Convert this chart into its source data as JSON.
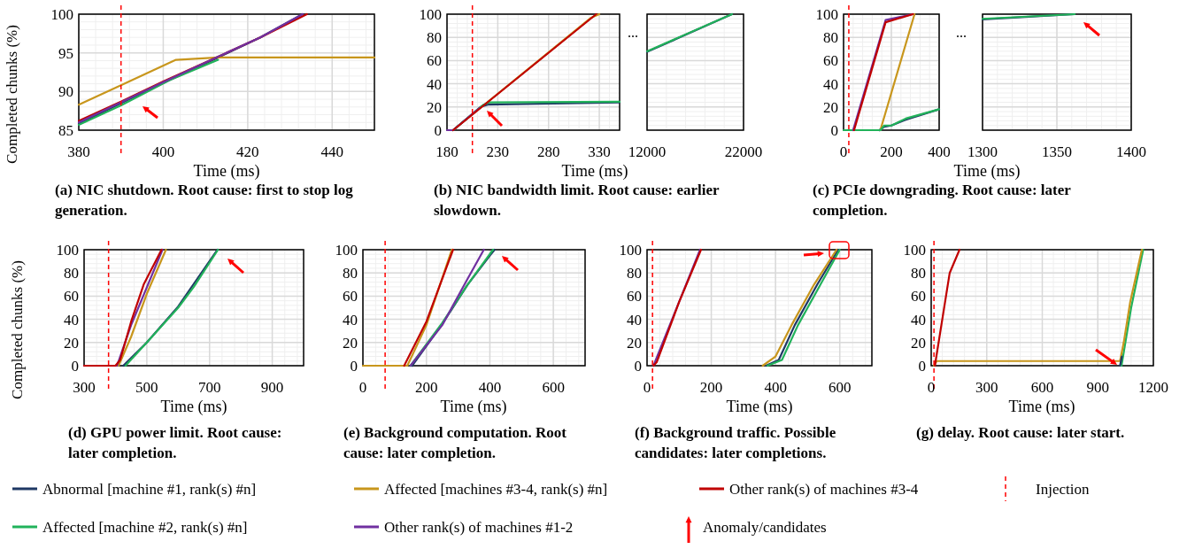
{
  "chart_data": [
    {
      "type": "line",
      "title": "(a) NIC shutdown. Root cause: first to stop log generation.",
      "xlabel": "Time (ms)",
      "ylabel": "Completed chunks (%)",
      "xlim": [
        380,
        450
      ],
      "xticks": [
        380,
        400,
        420,
        440
      ],
      "ylim": [
        85,
        100
      ],
      "yticks": [
        85,
        90,
        95,
        100
      ],
      "grid": true,
      "legend": "bottom",
      "annotations": [
        "Anomaly/candidates"
      ],
      "ref_lines": [
        {
          "axis": "x",
          "value": 390,
          "label": "Injection",
          "color": "#ff0000",
          "line_style": "dashed"
        }
      ],
      "series": [
        {
          "name": "Abnormal [machine #1, rank(s)  #n]",
          "color": "#1f3864",
          "x": [
            380,
            390,
            400,
            413,
            423,
            433
          ],
          "values": [
            85.8,
            88.5,
            91.1,
            94.4,
            97,
            100
          ]
        },
        {
          "name": "Affected [machines #3-4, rank(s)  #n]",
          "color": "#c8961c",
          "x": [
            380,
            390,
            403,
            413,
            450
          ],
          "values": [
            88.3,
            90.8,
            94.1,
            94.4,
            94.4
          ]
        },
        {
          "name": "Other rank(s) of machines #3-4",
          "color": "#c00000",
          "x": [
            380,
            390,
            400,
            413,
            423,
            434
          ],
          "values": [
            86.2,
            88.7,
            91.3,
            94.5,
            97,
            100
          ]
        },
        {
          "name": "Affected [machine #2, rank(s)  #n]",
          "color": "#21b25a",
          "x": [
            380,
            390,
            402,
            413
          ],
          "values": [
            85.7,
            88.2,
            91.6,
            94.1
          ]
        },
        {
          "name": "Other rank(s) of machines #1-2",
          "color": "#7030a0",
          "x": [
            380,
            390,
            400,
            413,
            423,
            433
          ],
          "values": [
            86,
            88.6,
            91.2,
            94.5,
            97,
            100
          ]
        }
      ]
    },
    {
      "type": "line",
      "title": "(b) NIC bandwidth limit. Root cause: earlier slowdown.",
      "xlabel": "Time (ms)",
      "xlim": [
        180,
        350
      ],
      "xticks": [
        180,
        230,
        280,
        330
      ],
      "ylim": [
        0,
        100
      ],
      "yticks": [
        0,
        20,
        40,
        60,
        80,
        100
      ],
      "grid": true,
      "ref_lines": [
        {
          "axis": "x",
          "value": 205,
          "color": "#ff0000",
          "line_style": "dashed"
        }
      ],
      "series": [
        {
          "color": "#1f3864",
          "x": [
            186,
            213,
            220,
            350
          ],
          "values": [
            0,
            20,
            22,
            24
          ]
        },
        {
          "color": "#c8961c",
          "x": [
            186,
            322,
            330
          ],
          "values": [
            0,
            97,
            100
          ]
        },
        {
          "color": "#21b25a",
          "x": [
            186,
            216,
            222,
            350
          ],
          "values": [
            0,
            22,
            24,
            24.5
          ]
        },
        {
          "color": "#7030a0",
          "x": [
            180,
            186,
            212
          ],
          "values": [
            0,
            0,
            19
          ]
        },
        {
          "color": "#c00000",
          "x": [
            186,
            327
          ],
          "values": [
            0,
            100
          ]
        }
      ]
    },
    {
      "type": "line",
      "xlim": [
        12000,
        22000
      ],
      "xticks": [
        12000,
        22000
      ],
      "ylim": [
        0,
        100
      ],
      "yticks": [
        0,
        20,
        40,
        60,
        80,
        100
      ],
      "grid": true,
      "tick_labels": "x",
      "annotations": [
        "..."
      ],
      "series": [
        {
          "color": "#1f3864",
          "x": [
            12000,
            20800
          ],
          "values": [
            67.5,
            100
          ]
        },
        {
          "color": "#21b25a",
          "x": [
            12000,
            20800
          ],
          "values": [
            68,
            100
          ]
        }
      ]
    },
    {
      "type": "line",
      "title": "(c) PCIe downgrading. Root cause: later completion.",
      "xlabel": "Time (ms)",
      "xlim": [
        0,
        400
      ],
      "xticks": [
        0,
        200,
        400
      ],
      "ylim": [
        0,
        100
      ],
      "yticks": [
        0,
        20,
        40,
        60,
        80,
        100
      ],
      "grid": true,
      "ref_lines": [
        {
          "axis": "x",
          "value": 22,
          "color": "#ff0000",
          "line_style": "dashed"
        }
      ],
      "series": [
        {
          "color": "#1f3864",
          "x": [
            150,
            170,
            200,
            260,
            400
          ],
          "values": [
            0,
            3,
            4,
            9,
            18
          ]
        },
        {
          "color": "#c8961c",
          "x": [
            154,
            297
          ],
          "values": [
            0,
            100
          ]
        },
        {
          "color": "#21b25a",
          "x": [
            0,
            155,
            170,
            200,
            260,
            400
          ],
          "values": [
            0,
            0,
            4,
            4,
            10,
            18
          ]
        },
        {
          "color": "#7030a0",
          "x": [
            40,
            176,
            290
          ],
          "values": [
            0,
            95,
            100
          ]
        },
        {
          "color": "#c00000",
          "x": [
            44,
            176,
            290
          ],
          "values": [
            0,
            93,
            100
          ]
        }
      ]
    },
    {
      "type": "line",
      "xlim": [
        1300,
        1400
      ],
      "xticks": [
        1300,
        1350,
        1400
      ],
      "ylim": [
        0,
        100
      ],
      "yticks": [
        0,
        20,
        40,
        60,
        80,
        100
      ],
      "grid": true,
      "tick_labels": "x",
      "annotations": [
        "..."
      ],
      "series": [
        {
          "color": "#1f3864",
          "x": [
            1300,
            1362
          ],
          "values": [
            95.5,
            100
          ]
        },
        {
          "color": "#21b25a",
          "x": [
            1300,
            1362
          ],
          "values": [
            96,
            100
          ]
        }
      ]
    },
    {
      "type": "line",
      "title": "(d) GPU power limit. Root cause: later completion.",
      "xlabel": "Time (ms)",
      "ylabel": "Completed chunks (%)",
      "xlim": [
        300,
        1000
      ],
      "xticks": [
        300,
        500,
        700,
        900
      ],
      "ylim": [
        0,
        100
      ],
      "yticks": [
        0,
        20,
        40,
        60,
        80,
        100
      ],
      "grid": true,
      "ref_lines": [
        {
          "axis": "x",
          "value": 378,
          "color": "#ff0000",
          "line_style": "dashed"
        }
      ],
      "series": [
        {
          "color": "#1f3864",
          "x": [
            425,
            500,
            600,
            725
          ],
          "values": [
            0,
            20,
            51,
            100
          ]
        },
        {
          "color": "#c8961c",
          "x": [
            410,
            450,
            500,
            561
          ],
          "values": [
            0,
            25,
            62,
            100
          ]
        },
        {
          "color": "#21b25a",
          "x": [
            432,
            500,
            600,
            650,
            727
          ],
          "values": [
            0,
            20,
            50,
            68,
            100
          ]
        },
        {
          "color": "#7030a0",
          "x": [
            300,
            405,
            450,
            550
          ],
          "values": [
            0,
            0,
            35,
            100
          ]
        },
        {
          "color": "#c00000",
          "x": [
            300,
            400,
            415,
            450,
            490,
            547
          ],
          "values": [
            0,
            0,
            5,
            38,
            70,
            100
          ]
        }
      ]
    },
    {
      "type": "line",
      "title": "(e) Background computation. Root cause: later completion.",
      "xlabel": "Time (ms)",
      "xlim": [
        0,
        700
      ],
      "xticks": [
        0,
        200,
        400,
        600
      ],
      "ylim": [
        0,
        100
      ],
      "yticks": [
        0,
        20,
        40,
        60,
        80,
        100
      ],
      "grid": true,
      "ref_lines": [
        {
          "axis": "x",
          "value": 70,
          "color": "#ff0000",
          "line_style": "dashed"
        }
      ],
      "series": [
        {
          "color": "#1f3864",
          "x": [
            155,
            250,
            330,
            400,
            415
          ],
          "values": [
            0,
            36,
            70,
            95,
            100
          ]
        },
        {
          "color": "#c8961c",
          "x": [
            0,
            140,
            200,
            280
          ],
          "values": [
            0,
            0,
            35,
            100
          ]
        },
        {
          "color": "#21b25a",
          "x": [
            150,
            250,
            330,
            410
          ],
          "values": [
            0,
            37,
            70,
            100
          ]
        },
        {
          "color": "#7030a0",
          "x": [
            150,
            250,
            330,
            381
          ],
          "values": [
            0,
            35,
            75,
            100
          ]
        },
        {
          "color": "#c00000",
          "x": [
            130,
            200,
            284
          ],
          "values": [
            0,
            38,
            100
          ]
        }
      ]
    },
    {
      "type": "line",
      "title": "(f) Background traffic. Possible candidates: later completions.",
      "xlabel": "Time (ms)",
      "xlim": [
        0,
        700
      ],
      "xticks": [
        0,
        200,
        400,
        600
      ],
      "ylim": [
        0,
        100
      ],
      "yticks": [
        0,
        20,
        40,
        60,
        80,
        100
      ],
      "grid": true,
      "ref_lines": [
        {
          "axis": "x",
          "value": 17,
          "color": "#ff0000",
          "line_style": "dashed"
        }
      ],
      "series": [
        {
          "color": "#1f3864",
          "x": [
            370,
            410,
            460,
            530,
            595
          ],
          "values": [
            0,
            5,
            35,
            70,
            100
          ]
        },
        {
          "color": "#c8961c",
          "x": [
            360,
            400,
            450,
            520,
            590
          ],
          "values": [
            0,
            8,
            35,
            70,
            100
          ]
        },
        {
          "color": "#21b25a",
          "x": [
            375,
            420,
            470,
            540,
            600
          ],
          "values": [
            0,
            5,
            35,
            70,
            100
          ]
        },
        {
          "color": "#7030a0",
          "x": [
            20,
            165
          ],
          "values": [
            0,
            100
          ]
        },
        {
          "color": "#c00000",
          "x": [
            20,
            30,
            100,
            168
          ],
          "values": [
            0,
            3,
            55,
            100
          ]
        }
      ]
    },
    {
      "type": "line",
      "title": "(g) delay. Root cause: later start.",
      "xlabel": "Time (ms)",
      "xlim": [
        0,
        1200
      ],
      "xticks": [
        0,
        300,
        600,
        900,
        1200
      ],
      "ylim": [
        0,
        100
      ],
      "yticks": [
        0,
        20,
        40,
        60,
        80,
        100
      ],
      "grid": true,
      "ref_lines": [
        {
          "axis": "x",
          "value": 15,
          "color": "#ff0000",
          "line_style": "dashed"
        }
      ],
      "series": [
        {
          "color": "#21b25a",
          "x": [
            1028,
            1080,
            1145
          ],
          "values": [
            0,
            50,
            100
          ]
        },
        {
          "color": "#c8961c",
          "x": [
            15,
            30,
            1020,
            1040,
            1075,
            1138
          ],
          "values": [
            0,
            4,
            4,
            20,
            55,
            100
          ]
        },
        {
          "color": "#c00000",
          "x": [
            20,
            60,
            100,
            153
          ],
          "values": [
            0,
            40,
            80,
            100
          ]
        },
        {
          "color": "#1f3864",
          "x": [
            1020,
            1030
          ],
          "values": [
            0,
            8
          ]
        }
      ]
    }
  ]
}
